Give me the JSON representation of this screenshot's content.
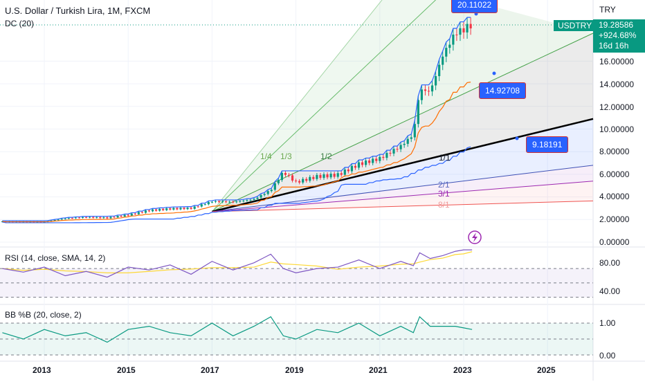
{
  "header": {
    "title": "U.S. Dollar / Turkish Lira, 1M, FXCM",
    "indicator": "DC (20)",
    "currency": "TRY"
  },
  "price_scale": {
    "ticks": [
      "16.00000",
      "14.00000",
      "12.00000",
      "10.00000",
      "8.00000",
      "6.00000",
      "4.00000",
      "2.00000",
      "0.00000"
    ],
    "symbol": "USDTRY",
    "last_price": "19.28586",
    "change": "+924.68%",
    "countdown": "16d 16h"
  },
  "time_axis": {
    "ticks": [
      "2013",
      "2015",
      "2017",
      "2019",
      "2021",
      "2023",
      "2025"
    ]
  },
  "callouts": [
    "20.11022",
    "14.92708",
    "9.18191"
  ],
  "fan_labels": [
    "1/4",
    "1/3",
    "1/2",
    "1/1",
    "2/1",
    "3/1",
    "8/1"
  ],
  "rsi": {
    "label": "RSI (14, close, SMA, 14, 2)",
    "ticks": [
      "80.00",
      "40.00"
    ]
  },
  "bb": {
    "label": "BB %B (20, close, 2)",
    "ticks": [
      "1.00",
      "0.00"
    ]
  },
  "colors": {
    "up": "#089981",
    "down": "#f23645",
    "donchian": "#2962ff",
    "basis": "#ff6d00",
    "trendline": "#000000",
    "rsi": "#7e57c2",
    "rsi_ma": "#fdd835",
    "bb": "#089981"
  },
  "chart_data": [
    {
      "type": "line",
      "title": "U.S. Dollar / Turkish Lira, 1M, FXCM",
      "x": [
        2012.0,
        2012.5,
        2013.0,
        2013.5,
        2014.0,
        2014.5,
        2015.0,
        2015.5,
        2016.0,
        2016.5,
        2017.0,
        2017.5,
        2018.0,
        2018.4,
        2018.7,
        2019.0,
        2019.5,
        2020.0,
        2020.5,
        2021.0,
        2021.5,
        2021.8,
        2021.95,
        2022.2,
        2022.5,
        2022.8,
        2023.0,
        2023.2
      ],
      "series": [
        {
          "values": [
            1.8,
            1.8,
            1.8,
            2.1,
            2.2,
            2.15,
            2.4,
            2.8,
            2.95,
            3.0,
            3.6,
            3.55,
            3.8,
            4.6,
            6.2,
            5.3,
            5.8,
            5.95,
            6.9,
            7.4,
            8.5,
            9.5,
            13.5,
            13.3,
            16.5,
            18.5,
            18.8,
            19.29
          ]
        }
      ],
      "ylim": [
        0,
        22
      ]
    },
    {
      "type": "line",
      "title": "RSI (14, close, SMA, 14, 2)",
      "series": [
        {
          "values": [
            70,
            65,
            72,
            60,
            66,
            58,
            72,
            68,
            75,
            62,
            80,
            68,
            78,
            90,
            70,
            64,
            70,
            72,
            82,
            70,
            80,
            74,
            92,
            84,
            88,
            94,
            96,
            96
          ]
        }
      ],
      "ylim": [
        20,
        100
      ]
    },
    {
      "type": "line",
      "title": "BB %B (20, close, 2)",
      "series": [
        {
          "values": [
            0.7,
            0.5,
            0.8,
            0.6,
            0.7,
            0.4,
            0.8,
            0.9,
            0.7,
            0.6,
            1.0,
            0.6,
            0.9,
            1.2,
            0.6,
            0.5,
            0.8,
            0.7,
            1.0,
            0.6,
            0.9,
            0.7,
            1.2,
            0.9,
            0.9,
            0.9,
            0.85,
            0.8
          ]
        }
      ],
      "ylim": [
        -0.1,
        1.4
      ]
    }
  ]
}
